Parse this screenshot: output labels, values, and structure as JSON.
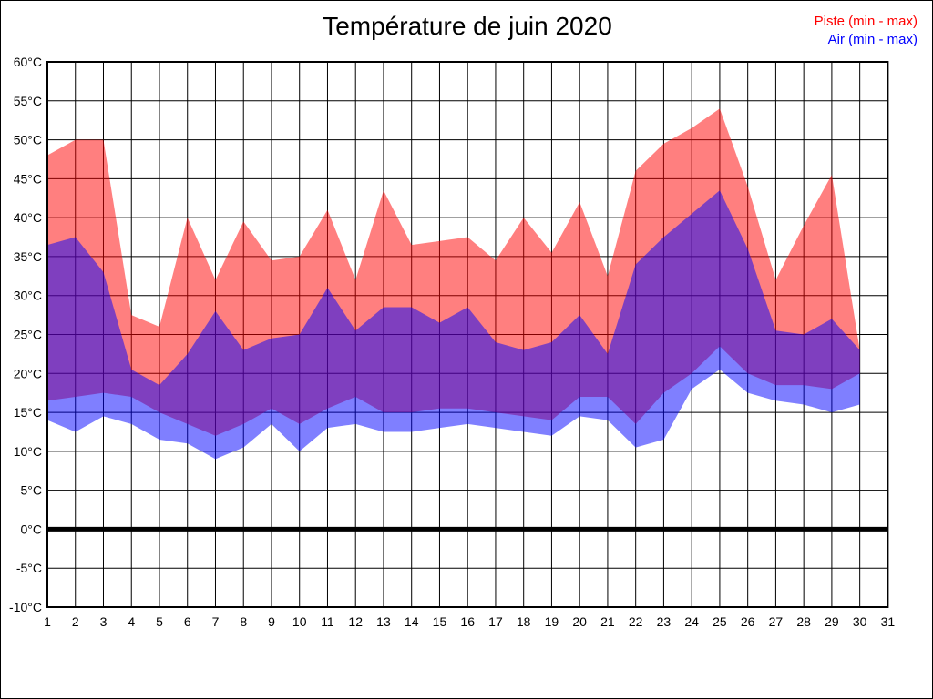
{
  "title": "Température de juin 2020",
  "legend": {
    "piste": {
      "label": "Piste (min - max)",
      "color": "#ff0000"
    },
    "air": {
      "label": "Air (min - max)",
      "color": "#0000ff"
    }
  },
  "chart_data": {
    "type": "area",
    "title": "Température de juin 2020",
    "x": [
      1,
      2,
      3,
      4,
      5,
      6,
      7,
      8,
      9,
      10,
      11,
      12,
      13,
      14,
      15,
      16,
      17,
      18,
      19,
      20,
      21,
      22,
      23,
      24,
      25,
      26,
      27,
      28,
      29,
      30
    ],
    "series": [
      {
        "name": "Piste (min - max)",
        "color": "#ff0000",
        "fill_opacity": 0.5,
        "max": [
          48,
          50,
          50,
          27.5,
          26,
          40,
          32,
          39.5,
          34.5,
          35,
          41,
          32,
          43.5,
          36.5,
          37,
          37.5,
          34.5,
          40,
          35.5,
          42,
          32.5,
          46,
          49.5,
          51.5,
          54,
          44,
          32,
          39,
          45.5,
          23
        ],
        "min": [
          16.5,
          17,
          17.5,
          17,
          15,
          13.5,
          12,
          13.5,
          15.5,
          13.5,
          15.5,
          17,
          15,
          15,
          15.5,
          15.5,
          15,
          14.5,
          14,
          17,
          17,
          13.5,
          17.5,
          20,
          23.5,
          20,
          18.5,
          18.5,
          18,
          20
        ]
      },
      {
        "name": "Air (min - max)",
        "color": "#0000ff",
        "fill_opacity": 0.5,
        "max": [
          36.5,
          37.5,
          33,
          20.5,
          18.5,
          22.5,
          28,
          23,
          24.5,
          25,
          31,
          25.5,
          28.5,
          28.5,
          26.5,
          28.5,
          24,
          23,
          24,
          27.5,
          22.5,
          34,
          37.5,
          40.5,
          43.5,
          36,
          25.5,
          25,
          27,
          23
        ],
        "min": [
          14,
          12.5,
          14.5,
          13.5,
          11.5,
          11,
          9,
          10.5,
          13.5,
          10,
          13,
          13.5,
          12.5,
          12.5,
          13,
          13.5,
          13,
          12.5,
          12,
          14.5,
          14,
          10.5,
          11.5,
          18,
          20.5,
          17.5,
          16.5,
          16,
          15,
          16
        ]
      }
    ],
    "xlim": [
      1,
      31
    ],
    "ylim": [
      -10,
      60
    ],
    "x_ticks": [
      1,
      2,
      3,
      4,
      5,
      6,
      7,
      8,
      9,
      10,
      11,
      12,
      13,
      14,
      15,
      16,
      17,
      18,
      19,
      20,
      21,
      22,
      23,
      24,
      25,
      26,
      27,
      28,
      29,
      30,
      31
    ],
    "y_tick_values": [
      60,
      55,
      50,
      45,
      40,
      35,
      30,
      25,
      20,
      15,
      10,
      5,
      0,
      -5,
      -10
    ],
    "y_tick_labels": [
      "60°C",
      "55°C",
      "50°C",
      "45°C",
      "40°C",
      "35°C",
      "30°C",
      "25°C",
      "20°C",
      "15°C",
      "10°C",
      "5°C",
      "0°C",
      "-5°C",
      "-10°C"
    ],
    "grid": true,
    "zero_line": true,
    "zero_line_width": 5,
    "legend_position": "top-right"
  }
}
